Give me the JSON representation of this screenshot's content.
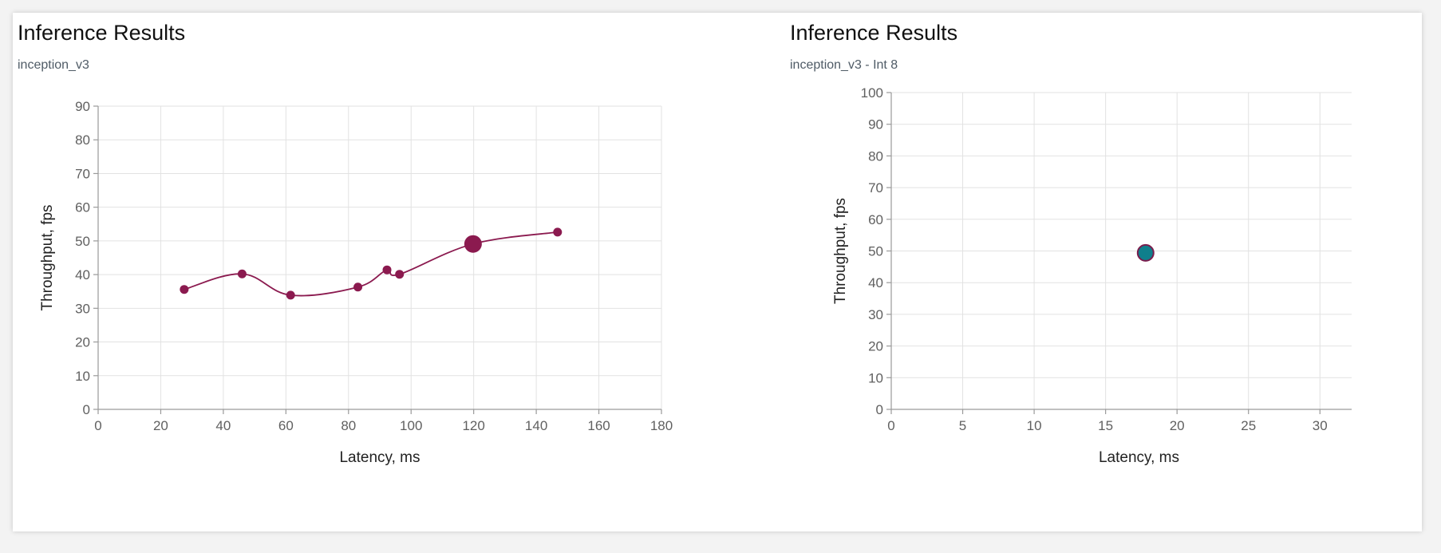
{
  "charts": [
    {
      "title": "Inference Results",
      "subtitle": "inception_v3"
    },
    {
      "title": "Inference Results",
      "subtitle": "inception_v3 - Int 8"
    }
  ],
  "colors": {
    "series_left": "#8b1a4f",
    "point_right_fill": "#0f7f8c",
    "point_right_stroke": "#7a1d4d"
  },
  "chart_data": [
    {
      "type": "line",
      "smooth": true,
      "title": "Inference Results",
      "subtitle": "inception_v3",
      "xlabel": "Latency, ms",
      "ylabel": "Throughput, fps",
      "xlim": [
        0,
        180
      ],
      "ylim": [
        0,
        90
      ],
      "x_ticks": [
        0,
        20,
        40,
        60,
        80,
        100,
        120,
        140,
        160,
        180
      ],
      "y_ticks": [
        0,
        10,
        20,
        30,
        40,
        50,
        60,
        70,
        80,
        90
      ],
      "grid": true,
      "legend": "none",
      "series": [
        {
          "x": [
            27.5,
            46,
            61.5,
            83,
            92.3,
            96.3,
            119.8,
            146.8
          ],
          "y": [
            35.6,
            40.2,
            33.9,
            36.3,
            41.4,
            40.1,
            49.1,
            52.6
          ],
          "highlight_index": 6
        }
      ]
    },
    {
      "type": "scatter",
      "title": "Inference Results",
      "subtitle": "inception_v3 - Int 8",
      "xlabel": "Latency, ms",
      "ylabel": "Throughput, fps",
      "xlim": [
        0,
        33
      ],
      "ylim": [
        0,
        100
      ],
      "x_ticks": [
        0,
        5,
        10,
        15,
        20,
        25,
        30
      ],
      "y_ticks": [
        0,
        10,
        20,
        30,
        40,
        50,
        60,
        70,
        80,
        90,
        100
      ],
      "grid": true,
      "legend": "none",
      "series": [
        {
          "x": [
            17.8
          ],
          "y": [
            49.4
          ]
        }
      ]
    }
  ]
}
